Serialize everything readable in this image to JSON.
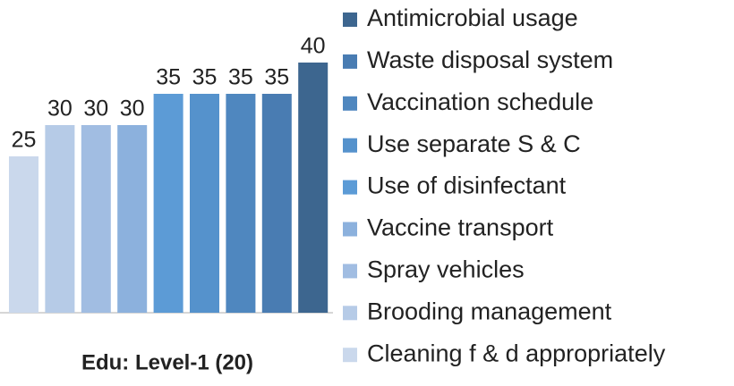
{
  "chart_data": {
    "type": "bar",
    "categories": [
      "Edu: Level-1 (20)"
    ],
    "series": [
      {
        "name": "Cleaning f & d appropriately",
        "color": "#cad8ec",
        "values": [
          25
        ]
      },
      {
        "name": "Brooding management",
        "color": "#b6cbe7",
        "values": [
          30
        ]
      },
      {
        "name": "Spray vehicles",
        "color": "#a1bde2",
        "values": [
          30
        ]
      },
      {
        "name": "Vaccine transport",
        "color": "#8cb1dd",
        "values": [
          30
        ]
      },
      {
        "name": "Use of disinfectant",
        "color": "#5c9bd6",
        "values": [
          35
        ]
      },
      {
        "name": "Use separate S & C",
        "color": "#5592cc",
        "values": [
          35
        ]
      },
      {
        "name": "Vaccination schedule",
        "color": "#4f87bf",
        "values": [
          35
        ]
      },
      {
        "name": "Waste disposal system",
        "color": "#497cb2",
        "values": [
          35
        ]
      },
      {
        "name": "Antimicrobial usage",
        "color": "#3d668f",
        "values": [
          40
        ]
      }
    ],
    "ylim": [
      0,
      50
    ],
    "legend": "right"
  }
}
